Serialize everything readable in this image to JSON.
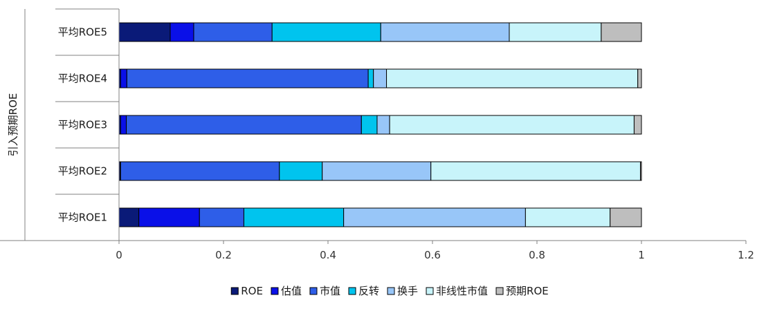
{
  "chart_data": {
    "type": "bar",
    "orientation": "horizontal",
    "stacked": true,
    "ylabel": "引入预期ROE",
    "categories": [
      "平均ROE5",
      "平均ROE4",
      "平均ROE3",
      "平均ROE2",
      "平均ROE1"
    ],
    "xlim": [
      0,
      1.2
    ],
    "xticks": [
      0,
      0.2,
      0.4,
      0.6,
      0.8,
      1,
      1.2
    ],
    "xtick_labels": [
      "0",
      "0.2",
      "0.4",
      "0.6",
      "0.8",
      "1",
      "1.2"
    ],
    "grid": false,
    "legend_position": "bottom",
    "series": [
      {
        "name": "ROE",
        "color": "#0a1a78",
        "values": [
          0.098,
          0.003,
          0.003,
          0.002,
          0.038
        ]
      },
      {
        "name": "估值",
        "color": "#0a10e8",
        "values": [
          0.045,
          0.012,
          0.011,
          0.001,
          0.116
        ]
      },
      {
        "name": "市值",
        "color": "#2e5ee8",
        "values": [
          0.15,
          0.462,
          0.45,
          0.304,
          0.085
        ]
      },
      {
        "name": "反转",
        "color": "#00c4ee",
        "values": [
          0.208,
          0.01,
          0.03,
          0.082,
          0.191
        ]
      },
      {
        "name": "换手",
        "color": "#98c6f8",
        "values": [
          0.246,
          0.025,
          0.024,
          0.208,
          0.348
        ]
      },
      {
        "name": "非线性市值",
        "color": "#c8f4fa",
        "values": [
          0.176,
          0.481,
          0.468,
          0.401,
          0.162
        ]
      },
      {
        "name": "预期ROE",
        "color": "#bebebe",
        "values": [
          0.077,
          0.007,
          0.014,
          0.002,
          0.06
        ]
      }
    ]
  }
}
